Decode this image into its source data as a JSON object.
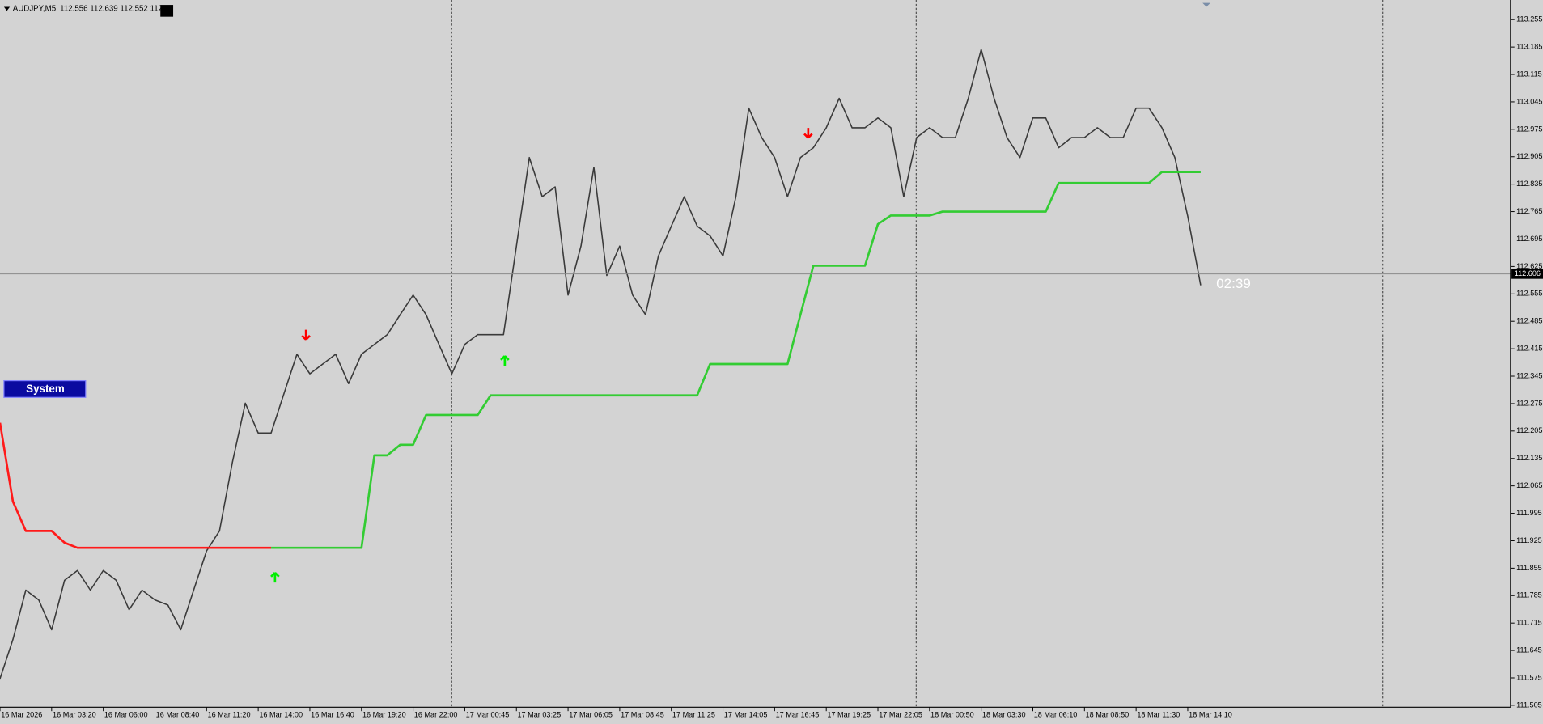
{
  "chart_data": {
    "type": "line",
    "title": "AUDJPY,M5",
    "ohlc_text": "112.556 112.639 112.552 112.",
    "button": "System",
    "countdown": "02:39",
    "current_price": 112.606,
    "categories": [
      "16 Mar 2026",
      null,
      null,
      null,
      "16 Mar 03:20",
      null,
      null,
      null,
      "16 Mar 06:00",
      null,
      null,
      null,
      "16 Mar 08:40",
      null,
      null,
      null,
      "16 Mar 11:20",
      null,
      null,
      null,
      "16 Mar 14:00",
      null,
      null,
      null,
      "16 Mar 16:40",
      null,
      null,
      null,
      "16 Mar 19:20",
      null,
      null,
      null,
      "16 Mar 22:00",
      null,
      null,
      null,
      "17 Mar 00:45",
      null,
      null,
      null,
      "17 Mar 03:25",
      null,
      null,
      null,
      "17 Mar 06:05",
      null,
      null,
      null,
      "17 Mar 08:45",
      null,
      null,
      null,
      "17 Mar 11:25",
      null,
      null,
      null,
      "17 Mar 14:05",
      null,
      null,
      null,
      "17 Mar 16:45",
      null,
      null,
      null,
      "17 Mar 19:25",
      null,
      null,
      null,
      "17 Mar 22:05",
      null,
      null,
      null,
      "18 Mar 00:50",
      null,
      null,
      null,
      "18 Mar 03:30",
      null,
      null,
      null,
      "18 Mar 06:10",
      null,
      null,
      null,
      "18 Mar 08:50",
      null,
      null,
      null,
      "18 Mar 11:30",
      null,
      null,
      null,
      "18 Mar 14:10",
      null,
      null,
      null,
      null,
      null,
      null,
      null,
      null,
      null,
      null,
      null,
      null,
      null,
      null,
      null,
      null,
      null,
      null,
      null,
      null,
      null,
      null,
      null,
      null
    ],
    "series": [
      {
        "color": "#3a3a3a",
        "values": [
          111.573,
          111.673,
          111.799,
          111.774,
          111.698,
          111.824,
          111.849,
          111.799,
          111.849,
          111.824,
          111.749,
          111.799,
          111.774,
          111.761,
          111.698,
          111.799,
          111.899,
          111.95,
          112.125,
          112.276,
          112.2,
          112.2,
          112.301,
          112.401,
          112.351,
          112.376,
          112.401,
          112.326,
          112.401,
          112.426,
          112.451,
          112.502,
          112.552,
          112.502,
          112.426,
          112.351,
          112.426,
          112.451,
          112.451,
          112.451,
          112.677,
          112.903,
          112.803,
          112.828,
          112.552,
          112.677,
          112.878,
          112.602,
          112.677,
          112.552,
          112.502,
          112.652,
          112.728,
          112.803,
          112.728,
          112.703,
          112.652,
          112.803,
          113.029,
          112.954,
          112.903,
          112.803,
          112.903,
          112.928,
          112.979,
          113.054,
          112.979,
          112.979,
          113.004,
          112.979,
          112.803,
          112.954,
          112.979,
          112.954,
          112.954,
          113.054,
          113.179,
          113.054,
          112.954,
          112.903,
          113.004,
          113.004,
          112.928,
          112.954,
          112.954,
          112.979,
          112.954,
          112.954,
          113.029,
          113.029,
          112.979,
          112.903,
          112.753,
          112.577,
          null,
          null,
          null,
          null,
          null,
          null,
          null,
          null,
          null,
          null,
          null,
          null,
          null,
          null,
          null,
          null,
          null,
          null,
          null,
          null,
          null,
          null,
          null
        ]
      },
      {
        "color": "#ff1a1a",
        "values": [
          112.226,
          112.025,
          111.95,
          111.95,
          111.95,
          111.92,
          111.907,
          111.907,
          111.907,
          111.907,
          111.907,
          111.907,
          111.907,
          111.907,
          111.907,
          111.907,
          111.907,
          111.907,
          111.907,
          111.907,
          111.907,
          111.907,
          null,
          null,
          null,
          null,
          null,
          null,
          null,
          null,
          null,
          null,
          null,
          null,
          null,
          null,
          null,
          null,
          null,
          null,
          null,
          null,
          null,
          null,
          null,
          null,
          null,
          null,
          null,
          null,
          null,
          null,
          null,
          null,
          null,
          null,
          null,
          null,
          null,
          null,
          null,
          null,
          null,
          null,
          null,
          null,
          null,
          null,
          null,
          null,
          null,
          null,
          null,
          null,
          null,
          null,
          null,
          null,
          null,
          null,
          null,
          null,
          null,
          null,
          null,
          null,
          null,
          null,
          null,
          null,
          null,
          null,
          null,
          null,
          null,
          null,
          null,
          null,
          null,
          null,
          null,
          null,
          null,
          null,
          null,
          null,
          null,
          null,
          null,
          null,
          null,
          null,
          null,
          null,
          null,
          null,
          null
        ]
      },
      {
        "color": "#33cc33",
        "values": [
          null,
          null,
          null,
          null,
          null,
          null,
          null,
          null,
          null,
          null,
          null,
          null,
          null,
          null,
          null,
          null,
          null,
          null,
          null,
          null,
          null,
          111.907,
          111.907,
          111.907,
          111.907,
          111.907,
          111.907,
          111.907,
          111.907,
          112.143,
          112.143,
          112.17,
          112.17,
          112.246,
          112.246,
          112.246,
          112.246,
          112.246,
          112.296,
          112.296,
          112.296,
          112.296,
          112.296,
          112.296,
          112.296,
          112.296,
          112.296,
          112.296,
          112.296,
          112.296,
          112.296,
          112.296,
          112.296,
          112.296,
          112.296,
          112.376,
          112.376,
          112.376,
          112.376,
          112.376,
          112.376,
          112.376,
          112.502,
          112.627,
          112.627,
          112.627,
          112.627,
          112.627,
          112.733,
          112.755,
          112.755,
          112.755,
          112.755,
          112.765,
          112.765,
          112.765,
          112.765,
          112.765,
          112.765,
          112.765,
          112.765,
          112.765,
          112.838,
          112.838,
          112.838,
          112.838,
          112.838,
          112.838,
          112.838,
          112.838,
          112.866,
          112.866,
          112.866,
          112.866,
          null,
          null,
          null,
          null,
          null,
          null,
          null,
          null,
          null,
          null,
          null,
          null,
          null,
          null,
          null,
          null,
          null,
          null,
          null,
          null,
          null,
          null,
          null
        ]
      }
    ],
    "arrows": [
      {
        "x": 23.7,
        "value": 112.451,
        "direction": "down",
        "color": "#ff0000"
      },
      {
        "x": 62.6,
        "value": 112.966,
        "direction": "down",
        "color": "#ff0000"
      },
      {
        "x": 39.1,
        "value": 112.384,
        "direction": "up",
        "color": "#00ee00"
      },
      {
        "x": 21.3,
        "value": 111.831,
        "direction": "up",
        "color": "#00ee00"
      }
    ],
    "ylim": [
      111.5,
      113.305
    ],
    "yticks": [
      113.255,
      113.185,
      113.115,
      113.045,
      112.975,
      112.905,
      112.835,
      112.765,
      112.695,
      112.625,
      112.555,
      112.485,
      112.415,
      112.345,
      112.275,
      112.205,
      112.135,
      112.065,
      111.995,
      111.925,
      111.855,
      111.785,
      111.715,
      111.645,
      111.575,
      111.505
    ]
  }
}
